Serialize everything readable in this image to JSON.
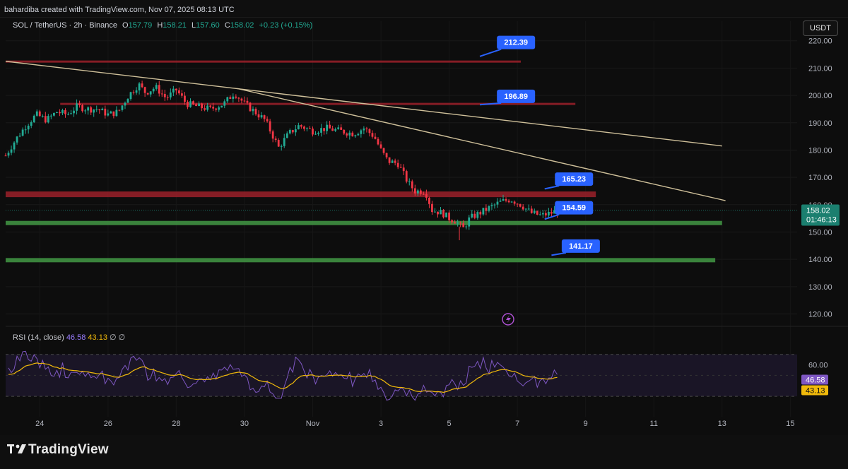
{
  "header": "bahardiba created with TradingView.com, Nov 07, 2025 08:13 UTC",
  "legend": {
    "symbol": "SOL / TetherUS · 2h · Binance",
    "o_label": "O",
    "o": "157.79",
    "h_label": "H",
    "h": "158.21",
    "l_label": "L",
    "l": "157.60",
    "c_label": "C",
    "c": "158.02",
    "change": "+0.23 (+0.15%)"
  },
  "currency_button": "USDT",
  "rsi_legend": {
    "name": "RSI (14, close)",
    "rsi": "46.58",
    "ma": "43.13",
    "extra": "∅ ∅"
  },
  "brand": "TradingView",
  "colors": {
    "up": "#22ab94",
    "down": "#f23645",
    "resistance": "#8c1f27",
    "support": "#3d8a3f",
    "trendline": "#cfc09a",
    "label_bg": "#2962ff",
    "rsi": "#7e57c2",
    "rsi_ma": "#f0b90b"
  },
  "chart_data": {
    "type": "candlestick",
    "symbol": "SOL / TetherUS",
    "interval": "2h",
    "exchange": "Binance",
    "x_ticks": [
      "24",
      "26",
      "28",
      "30",
      "Nov",
      "3",
      "5",
      "7",
      "9",
      "11",
      "13",
      "15"
    ],
    "y_ticks": [
      120,
      130,
      140,
      150,
      160,
      170,
      180,
      190,
      200,
      210,
      220
    ],
    "ylim": [
      116,
      222
    ],
    "last_price": "158.02",
    "countdown": "01:46:13",
    "ohlc_path": [
      [
        23.0,
        178
      ],
      [
        23.3,
        184
      ],
      [
        23.6,
        189
      ],
      [
        23.9,
        193
      ],
      [
        24.2,
        191
      ],
      [
        24.5,
        194
      ],
      [
        24.8,
        193
      ],
      [
        25.1,
        196
      ],
      [
        25.4,
        195
      ],
      [
        25.7,
        195
      ],
      [
        26.0,
        193
      ],
      [
        26.3,
        194
      ],
      [
        26.6,
        200
      ],
      [
        26.9,
        204
      ],
      [
        27.1,
        201
      ],
      [
        27.4,
        203
      ],
      [
        27.7,
        199
      ],
      [
        28.0,
        202
      ],
      [
        28.3,
        197
      ],
      [
        28.6,
        196
      ],
      [
        29.0,
        195
      ],
      [
        29.4,
        197
      ],
      [
        29.7,
        201
      ],
      [
        30.0,
        197
      ],
      [
        30.3,
        194
      ],
      [
        30.6,
        191
      ],
      [
        30.8,
        186
      ],
      [
        31.0,
        181
      ],
      [
        31.3,
        186
      ],
      [
        31.6,
        189
      ],
      [
        32.0,
        187
      ],
      [
        32.4,
        188
      ],
      [
        32.8,
        187
      ],
      [
        33.2,
        186
      ],
      [
        33.5,
        188
      ],
      [
        33.8,
        185
      ],
      [
        34.0,
        180
      ],
      [
        34.2,
        176
      ],
      [
        34.5,
        175
      ],
      [
        34.8,
        168
      ],
      [
        35.0,
        165
      ],
      [
        35.3,
        165
      ],
      [
        35.5,
        158
      ],
      [
        35.8,
        157
      ],
      [
        36.0,
        155
      ],
      [
        36.2,
        154
      ],
      [
        36.4,
        151
      ],
      [
        36.6,
        155
      ],
      [
        36.9,
        157
      ],
      [
        37.2,
        159
      ],
      [
        37.5,
        161
      ],
      [
        37.8,
        162
      ],
      [
        38.1,
        160
      ],
      [
        38.4,
        157
      ],
      [
        38.7,
        156
      ],
      [
        39.0,
        157
      ],
      [
        39.2,
        158
      ]
    ],
    "horizontal_levels": [
      {
        "value": 212.39,
        "label": "212.39",
        "kind": "resistance"
      },
      {
        "value": 196.89,
        "label": "196.89",
        "kind": "resistance"
      },
      {
        "value": 165.23,
        "label": "165.23",
        "kind": "resistance"
      },
      {
        "value": 154.59,
        "label": "154.59",
        "kind": "support"
      },
      {
        "value": 141.17,
        "label": "141.17",
        "kind": "support"
      }
    ],
    "trendlines": [
      {
        "from": [
          23.0,
          212.5
        ],
        "to": [
          44.0,
          181.5
        ]
      },
      {
        "from": [
          29.8,
          202.5
        ],
        "to": [
          44.1,
          161.5
        ]
      }
    ],
    "rsi": {
      "name": "RSI (14, close)",
      "value": "46.58",
      "ma_value": "43.13",
      "y_tick": "60.00",
      "band": [
        30,
        70
      ]
    }
  }
}
